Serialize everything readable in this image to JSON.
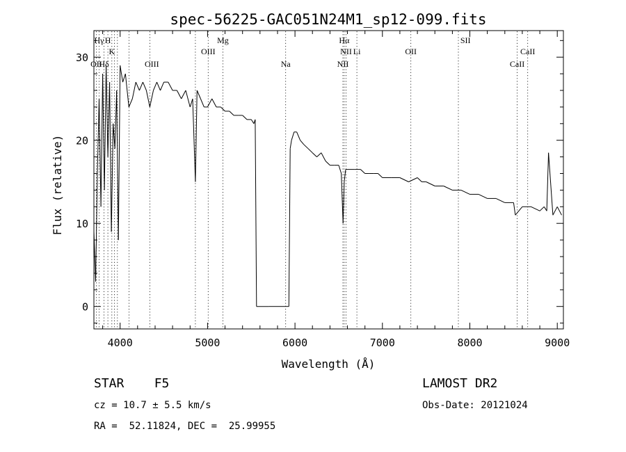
{
  "chart_data": {
    "type": "line",
    "title": "spec-56225-GAC051N24M1_sp12-099.fits",
    "xlabel": "Wavelength (Å)",
    "ylabel": "Flux (relative)",
    "xlim": [
      3700,
      9070
    ],
    "ylim": [
      -2.7,
      33.2
    ],
    "xticks": [
      4000,
      5000,
      6000,
      7000,
      8000,
      9000
    ],
    "yticks": [
      0,
      10,
      20,
      30
    ],
    "grid": false,
    "line_color": "#000000",
    "series": [
      {
        "x": [
          3700,
          3720,
          3740,
          3760,
          3780,
          3800,
          3820,
          3840,
          3860,
          3880,
          3900,
          3920,
          3940,
          3960,
          3980,
          4000,
          4030,
          4060,
          4100,
          4140,
          4180,
          4220,
          4260,
          4300,
          4340,
          4380,
          4420,
          4460,
          4500,
          4550,
          4600,
          4650,
          4700,
          4750,
          4800,
          4830,
          4861,
          4880,
          4920,
          4960,
          5000,
          5050,
          5100,
          5150,
          5200,
          5250,
          5300,
          5350,
          5400,
          5450,
          5500,
          5530,
          5545,
          5560,
          5700,
          5800,
          5900,
          5930,
          5945,
          5960,
          5990,
          6020,
          6060,
          6100,
          6150,
          6200,
          6250,
          6300,
          6350,
          6400,
          6450,
          6500,
          6530,
          6550,
          6563,
          6580,
          6620,
          6680,
          6750,
          6800,
          6850,
          6900,
          6950,
          7000,
          7100,
          7200,
          7300,
          7400,
          7450,
          7500,
          7600,
          7700,
          7800,
          7900,
          8000,
          8100,
          8200,
          8300,
          8400,
          8500,
          8520,
          8600,
          8700,
          8800,
          8850,
          8880,
          8900,
          8950,
          9000,
          9050
        ],
        "y": [
          9,
          3,
          16,
          25,
          12,
          28,
          14,
          29,
          18,
          27,
          9,
          22,
          19,
          26,
          8,
          29,
          27,
          28,
          24,
          25,
          27,
          26,
          27,
          26,
          24,
          26,
          27,
          26,
          27,
          27,
          26,
          26,
          25,
          26,
          24,
          25,
          15,
          26,
          25,
          24,
          24,
          25,
          24,
          24,
          23.5,
          23.5,
          23,
          23,
          23,
          22.5,
          22.5,
          22,
          22.5,
          0,
          0,
          0,
          0,
          0,
          19,
          20,
          21,
          21,
          20,
          19.5,
          19,
          18.5,
          18,
          18.5,
          17.5,
          17,
          17,
          17,
          16,
          10,
          15,
          16.5,
          16.5,
          16.5,
          16.5,
          16,
          16,
          16,
          16,
          15.5,
          15.5,
          15.5,
          15,
          15.5,
          15,
          15,
          14.5,
          14.5,
          14,
          14,
          13.5,
          13.5,
          13,
          13,
          12.5,
          12.5,
          11,
          12,
          12,
          11.5,
          12,
          11.5,
          18.5,
          11,
          12,
          11
        ]
      }
    ],
    "line_markers": [
      {
        "label": "Hγ",
        "x": 3760,
        "row": 0
      },
      {
        "label": "H",
        "x": 3860,
        "row": 0
      },
      {
        "label": "K",
        "x": 3905,
        "row": 1
      },
      {
        "label": "OII",
        "x": 3727,
        "row": 2
      },
      {
        "label": "Hδ",
        "x": 3815,
        "row": 2
      },
      {
        "label": "OIII",
        "x": 4363,
        "row": 2
      },
      {
        "label": "Mg",
        "x": 5175,
        "row": 0
      },
      {
        "label": "OIII",
        "x": 5007,
        "row": 1
      },
      {
        "label": "Na",
        "x": 5893,
        "row": 2
      },
      {
        "label": "Hα",
        "x": 6563,
        "row": 0
      },
      {
        "label": "NII",
        "x": 6584,
        "row": 1
      },
      {
        "label": "Li",
        "x": 6708,
        "row": 1
      },
      {
        "label": "NII",
        "x": 6548,
        "row": 2
      },
      {
        "label": "OII",
        "x": 7325,
        "row": 1
      },
      {
        "label": "SII",
        "x": 7950,
        "row": 0
      },
      {
        "label": "CaII",
        "x": 8662,
        "row": 1
      },
      {
        "label": "CaII",
        "x": 8542,
        "row": 2
      }
    ],
    "line_marker_positions": [
      3727,
      3760,
      3815,
      3860,
      3905,
      3935,
      3969,
      4102,
      4340,
      4861,
      5007,
      5175,
      5893,
      6548,
      6563,
      6584,
      6708,
      7325,
      7869,
      8542,
      8662
    ]
  },
  "info": {
    "class_text": "STAR    F5",
    "source_text": "LAMOST DR2",
    "cz_text": "cz = 10.7 ± 5.5 km/s",
    "obsdate_text": "Obs-Date: 20121024",
    "radec_text": "RA =  52.11824, DEC =  25.99955"
  }
}
